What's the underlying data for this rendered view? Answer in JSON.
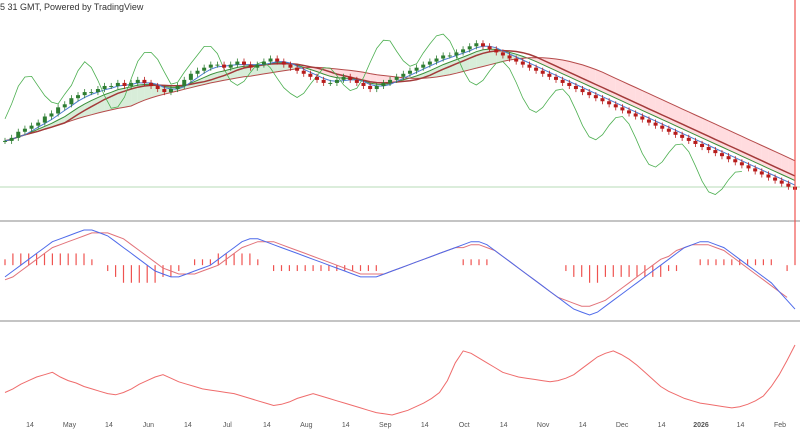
{
  "header": {
    "caption": "5 31 GMT, Powered by TradingView"
  },
  "colors": {
    "candle_up": "#2e7d32",
    "candle_down": "#b71c1c",
    "tenkan": "#4a7bd0",
    "kijun": "#a33a3a",
    "chikou": "#4caf50",
    "span_a": "#3a8f3a",
    "span_b": "#b54a4a",
    "cloud_bull": "#c8e6c9",
    "cloud_bear": "#ffcdd2",
    "macd": "#4f6bea",
    "signal": "#e2737a",
    "hist": "#ef5350",
    "lower": "#ef6c6c",
    "separator": "#888888",
    "baseline": "#9fcf9f"
  },
  "chart_data": {
    "type": "line",
    "x_labels": [
      "14",
      "May",
      "14",
      "Jun",
      "14",
      "Jul",
      "14",
      "Aug",
      "14",
      "Sep",
      "14",
      "Oct",
      "14",
      "Nov",
      "14",
      "Dec",
      "14",
      "2026",
      "14",
      "Feb"
    ],
    "price": {
      "close": [
        1.16,
        1.17,
        1.19,
        1.2,
        1.21,
        1.22,
        1.24,
        1.25,
        1.27,
        1.28,
        1.3,
        1.31,
        1.32,
        1.32,
        1.33,
        1.34,
        1.34,
        1.35,
        1.34,
        1.35,
        1.36,
        1.35,
        1.34,
        1.33,
        1.32,
        1.33,
        1.34,
        1.36,
        1.38,
        1.39,
        1.4,
        1.41,
        1.41,
        1.4,
        1.41,
        1.42,
        1.41,
        1.4,
        1.41,
        1.42,
        1.43,
        1.42,
        1.41,
        1.4,
        1.39,
        1.38,
        1.37,
        1.36,
        1.35,
        1.35,
        1.36,
        1.37,
        1.36,
        1.35,
        1.34,
        1.33,
        1.34,
        1.35,
        1.36,
        1.37,
        1.38,
        1.39,
        1.4,
        1.41,
        1.42,
        1.43,
        1.44,
        1.44,
        1.45,
        1.46,
        1.47,
        1.48,
        1.47,
        1.46,
        1.45,
        1.44,
        1.43,
        1.42,
        1.41,
        1.4,
        1.39,
        1.38,
        1.37,
        1.36,
        1.35,
        1.34,
        1.33,
        1.32,
        1.31,
        1.3,
        1.29,
        1.28,
        1.27,
        1.26,
        1.25,
        1.24,
        1.23,
        1.22,
        1.21,
        1.2,
        1.19,
        1.18,
        1.17,
        1.16,
        1.15,
        1.14,
        1.13,
        1.12,
        1.11,
        1.1,
        1.09,
        1.08,
        1.07,
        1.06,
        1.05,
        1.04,
        1.03,
        1.02,
        1.01,
        1.0
      ]
    },
    "macd": {
      "macd": [
        -0.004,
        -0.002,
        0.0,
        0.002,
        0.004,
        0.006,
        0.008,
        0.009,
        0.01,
        0.011,
        0.012,
        0.012,
        0.011,
        0.01,
        0.008,
        0.006,
        0.004,
        0.002,
        0.0,
        -0.002,
        -0.003,
        -0.004,
        -0.004,
        -0.003,
        -0.002,
        -0.001,
        0.0,
        0.002,
        0.004,
        0.006,
        0.008,
        0.009,
        0.009,
        0.008,
        0.007,
        0.006,
        0.005,
        0.004,
        0.003,
        0.002,
        0.001,
        0.0,
        -0.001,
        -0.002,
        -0.003,
        -0.004,
        -0.004,
        -0.004,
        -0.003,
        -0.002,
        -0.001,
        0.0,
        0.001,
        0.002,
        0.003,
        0.004,
        0.005,
        0.006,
        0.007,
        0.008,
        0.008,
        0.007,
        0.005,
        0.003,
        0.001,
        -0.001,
        -0.003,
        -0.005,
        -0.007,
        -0.009,
        -0.011,
        -0.013,
        -0.015,
        -0.016,
        -0.017,
        -0.016,
        -0.014,
        -0.012,
        -0.01,
        -0.008,
        -0.006,
        -0.004,
        -0.002,
        0.0,
        0.002,
        0.004,
        0.006,
        0.007,
        0.008,
        0.008,
        0.007,
        0.006,
        0.004,
        0.002,
        0.0,
        -0.002,
        -0.004,
        -0.006,
        -0.009,
        -0.012,
        -0.015
      ],
      "signal": [
        -0.005,
        -0.004,
        -0.002,
        0.0,
        0.002,
        0.004,
        0.006,
        0.007,
        0.008,
        0.009,
        0.01,
        0.011,
        0.011,
        0.011,
        0.01,
        0.009,
        0.007,
        0.005,
        0.003,
        0.001,
        -0.001,
        -0.002,
        -0.003,
        -0.003,
        -0.003,
        -0.002,
        -0.001,
        0.0,
        0.002,
        0.004,
        0.006,
        0.007,
        0.008,
        0.008,
        0.008,
        0.007,
        0.006,
        0.005,
        0.004,
        0.003,
        0.002,
        0.001,
        0.0,
        -0.001,
        -0.002,
        -0.003,
        -0.003,
        -0.003,
        -0.003,
        -0.002,
        -0.001,
        0.0,
        0.001,
        0.002,
        0.003,
        0.004,
        0.005,
        0.006,
        0.006,
        0.007,
        0.007,
        0.006,
        0.005,
        0.003,
        0.001,
        -0.001,
        -0.003,
        -0.005,
        -0.007,
        -0.009,
        -0.011,
        -0.012,
        -0.013,
        -0.014,
        -0.014,
        -0.013,
        -0.012,
        -0.01,
        -0.008,
        -0.006,
        -0.004,
        -0.002,
        0.0,
        0.002,
        0.003,
        0.005,
        0.006,
        0.007,
        0.007,
        0.007,
        0.006,
        0.005,
        0.003,
        0.001,
        -0.001,
        -0.003,
        -0.005,
        -0.007,
        -0.009,
        -0.011
      ]
    },
    "lower": {
      "values": [
        45,
        48,
        52,
        55,
        58,
        60,
        62,
        58,
        55,
        53,
        50,
        48,
        46,
        44,
        43,
        45,
        48,
        52,
        55,
        58,
        60,
        57,
        54,
        52,
        50,
        48,
        47,
        46,
        45,
        44,
        42,
        40,
        38,
        36,
        34,
        35,
        37,
        40,
        42,
        44,
        42,
        40,
        38,
        36,
        34,
        32,
        30,
        28,
        27,
        26,
        28,
        30,
        33,
        36,
        40,
        45,
        55,
        70,
        80,
        78,
        74,
        70,
        66,
        62,
        60,
        58,
        57,
        56,
        55,
        54,
        55,
        57,
        60,
        65,
        70,
        75,
        78,
        80,
        77,
        73,
        68,
        62,
        56,
        50,
        46,
        43,
        40,
        38,
        36,
        35,
        34,
        33,
        32,
        33,
        35,
        38,
        42,
        50,
        60,
        72,
        85
      ]
    }
  }
}
